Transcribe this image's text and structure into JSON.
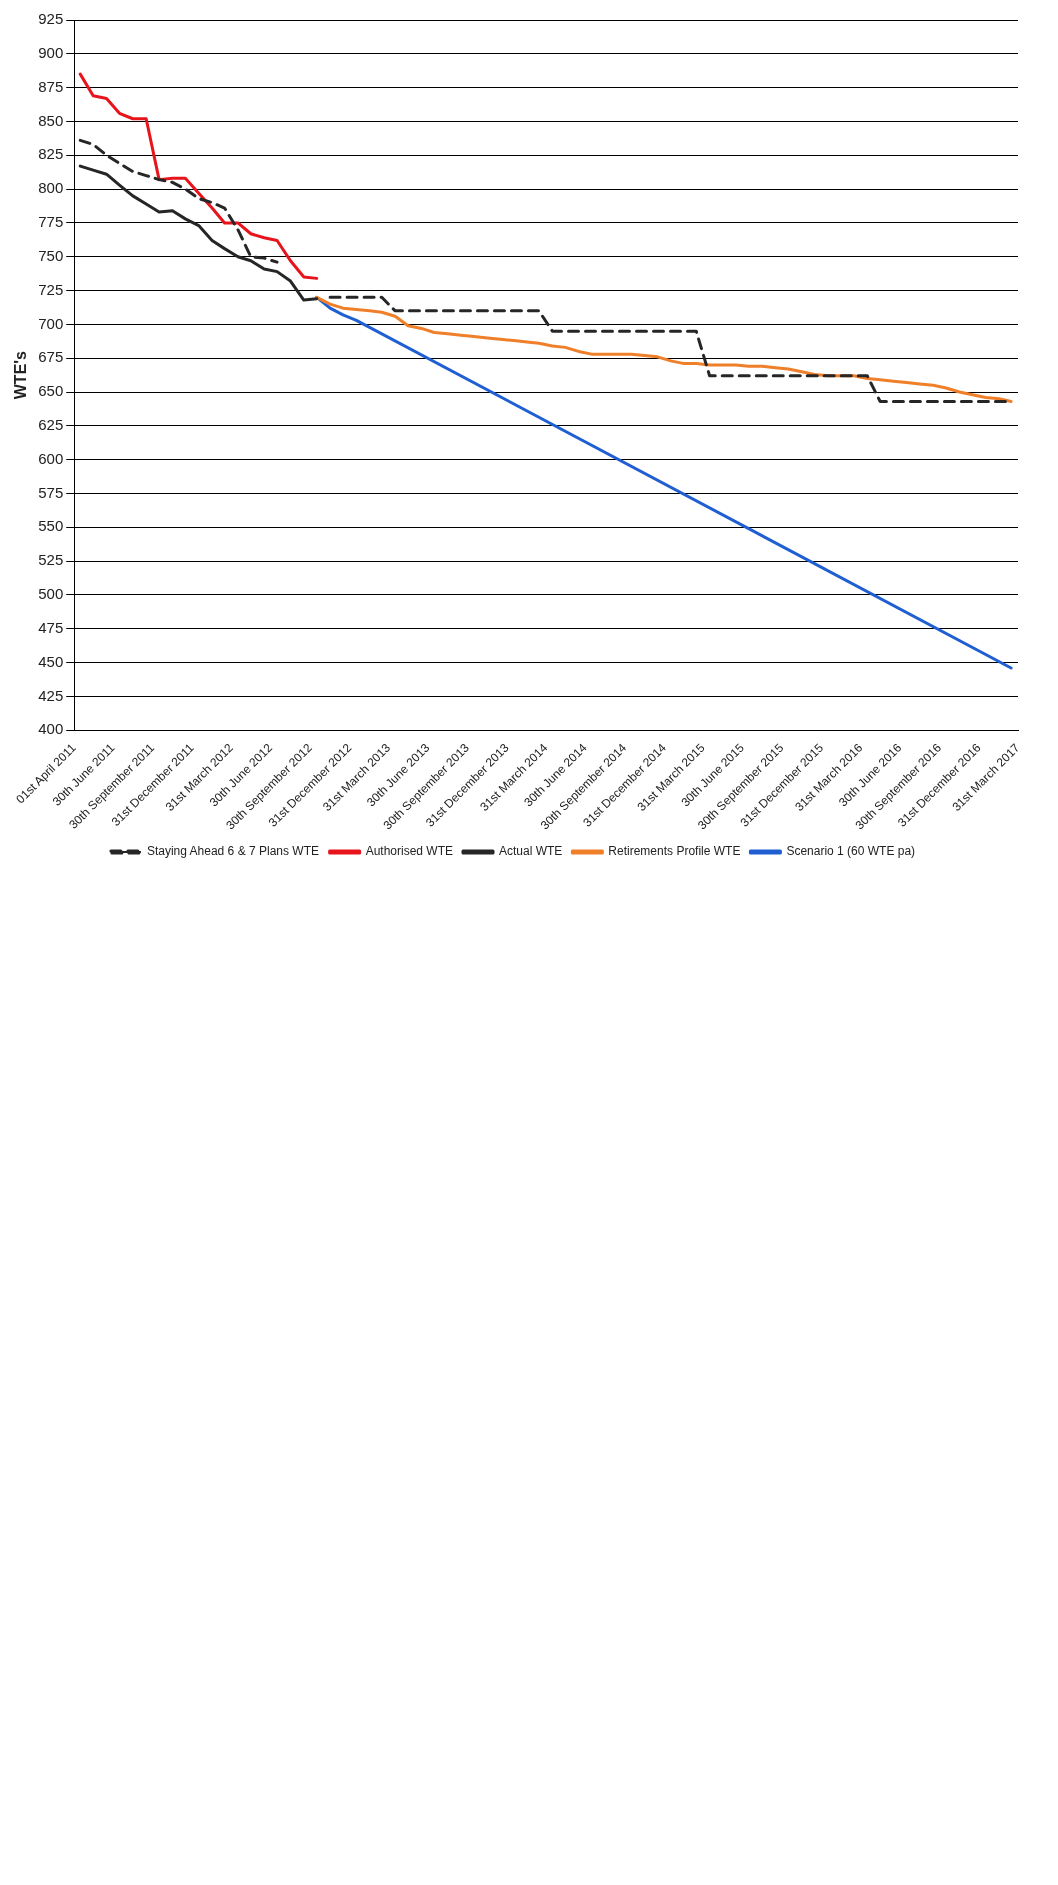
{
  "chart_data": {
    "type": "line",
    "ylabel": "WTE's",
    "ylim": [
      400,
      925
    ],
    "yticks": [
      400,
      425,
      450,
      475,
      500,
      525,
      550,
      575,
      600,
      625,
      650,
      675,
      700,
      725,
      750,
      775,
      800,
      825,
      850,
      875,
      900,
      925
    ],
    "xlim": [
      "2011-04-01",
      "2017-03-31"
    ],
    "xticks": [
      {
        "value": "2011-04-01",
        "label": "01st April 2011"
      },
      {
        "value": "2011-06-30",
        "label": "30th June 2011"
      },
      {
        "value": "2011-09-30",
        "label": "30th September 2011"
      },
      {
        "value": "2011-12-31",
        "label": "31st December 2011"
      },
      {
        "value": "2012-03-31",
        "label": "31st March 2012"
      },
      {
        "value": "2012-06-30",
        "label": "30th June 2012"
      },
      {
        "value": "2012-09-30",
        "label": "30th September 2012"
      },
      {
        "value": "2012-12-31",
        "label": "31st December 2012"
      },
      {
        "value": "2013-03-31",
        "label": "31st March 2013"
      },
      {
        "value": "2013-06-30",
        "label": "30th June 2013"
      },
      {
        "value": "2013-09-30",
        "label": "30th September 2013"
      },
      {
        "value": "2013-12-31",
        "label": "31st December 2013"
      },
      {
        "value": "2014-03-31",
        "label": "31st March 2014"
      },
      {
        "value": "2014-06-30",
        "label": "30th June 2014"
      },
      {
        "value": "2014-09-30",
        "label": "30th September 2014"
      },
      {
        "value": "2014-12-31",
        "label": "31st December 2014"
      },
      {
        "value": "2015-03-31",
        "label": "31st March 2015"
      },
      {
        "value": "2015-06-30",
        "label": "30th June 2015"
      },
      {
        "value": "2015-09-30",
        "label": "30th September 2015"
      },
      {
        "value": "2015-12-31",
        "label": "31st December 2015"
      },
      {
        "value": "2016-03-31",
        "label": "31st March 2016"
      },
      {
        "value": "2016-06-30",
        "label": "30th June 2016"
      },
      {
        "value": "2016-09-30",
        "label": "30th September 2016"
      },
      {
        "value": "2016-12-31",
        "label": "31st December 2016"
      },
      {
        "value": "2017-03-31",
        "label": "31st March 2017"
      }
    ],
    "grid": "y",
    "legend": "bottom",
    "x": [
      "2011-04-15",
      "2011-05-15",
      "2011-06-15",
      "2011-07-15",
      "2011-08-15",
      "2011-09-15",
      "2011-10-15",
      "2011-11-15",
      "2011-12-15",
      "2012-01-15",
      "2012-02-15",
      "2012-03-15",
      "2012-04-15",
      "2012-05-15",
      "2012-06-15",
      "2012-07-15",
      "2012-08-15",
      "2012-09-15",
      "2012-10-15",
      "2012-11-15",
      "2012-12-15",
      "2013-01-15",
      "2013-02-15",
      "2013-03-15",
      "2013-04-15",
      "2013-05-15",
      "2013-06-15",
      "2013-07-15",
      "2013-08-15",
      "2013-09-15",
      "2013-10-15",
      "2013-11-15",
      "2013-12-15",
      "2014-01-15",
      "2014-02-15",
      "2014-03-15",
      "2014-04-15",
      "2014-05-15",
      "2014-06-15",
      "2014-07-15",
      "2014-08-15",
      "2014-09-15",
      "2014-10-15",
      "2014-11-15",
      "2014-12-15",
      "2015-01-15",
      "2015-02-15",
      "2015-03-15",
      "2015-04-15",
      "2015-05-15",
      "2015-06-15",
      "2015-07-15",
      "2015-08-15",
      "2015-09-15",
      "2015-10-15",
      "2015-11-15",
      "2015-12-15",
      "2016-01-15",
      "2016-02-15",
      "2016-03-15",
      "2016-04-15",
      "2016-05-15",
      "2016-06-15",
      "2016-07-15",
      "2016-08-15",
      "2016-09-15",
      "2016-10-15",
      "2016-11-15",
      "2016-12-15",
      "2017-01-15",
      "2017-02-15",
      "2017-03-15"
    ],
    "series": [
      {
        "name": "Staying Ahead 6 & 7 Plans WTE",
        "color": "#262626",
        "line_style": "dashed",
        "values": [
          836,
          833,
          825,
          819,
          813,
          810,
          807,
          805,
          800,
          793,
          790,
          786,
          770,
          750,
          749,
          746,
          null,
          null,
          null,
          720,
          720,
          720,
          720,
          720,
          710,
          710,
          710,
          710,
          710,
          710,
          710,
          710,
          710,
          710,
          710,
          710,
          695,
          695,
          695,
          695,
          695,
          695,
          695,
          695,
          695,
          695,
          695,
          695,
          662,
          662,
          662,
          662,
          662,
          662,
          662,
          662,
          662,
          662,
          662,
          662,
          662,
          643,
          643,
          643,
          643,
          643,
          643,
          643,
          643,
          643,
          643,
          643
        ]
      },
      {
        "name": "Authorised WTE",
        "color": "#e8141c",
        "x": [
          "2011-04-15",
          "2011-05-15",
          "2011-06-15",
          "2011-07-15",
          "2011-08-15",
          "2011-09-15",
          "2011-10-15",
          "2011-11-15",
          "2011-12-15",
          "2012-01-15",
          "2012-02-15",
          "2012-03-15",
          "2012-04-15",
          "2012-05-15",
          "2012-06-15",
          "2012-07-15",
          "2012-08-15",
          "2012-09-15",
          "2012-10-15"
        ],
        "values": [
          885,
          869,
          867,
          856,
          852,
          852,
          807,
          808,
          808,
          797,
          786,
          775,
          775,
          767,
          764,
          762,
          747,
          735,
          734
        ]
      },
      {
        "name": "Actual WTE",
        "color": "#262626",
        "x": [
          "2011-04-15",
          "2011-05-15",
          "2011-06-15",
          "2011-07-15",
          "2011-08-15",
          "2011-09-15",
          "2011-10-15",
          "2011-11-15",
          "2011-12-15",
          "2012-01-15",
          "2012-02-15",
          "2012-03-15",
          "2012-04-15",
          "2012-05-15",
          "2012-06-15",
          "2012-07-15",
          "2012-08-15",
          "2012-09-15",
          "2012-10-15"
        ],
        "values": [
          817,
          814,
          811,
          803,
          795,
          789,
          783,
          784,
          778,
          773,
          762,
          756,
          750,
          747,
          741,
          739,
          732,
          718,
          719
        ]
      },
      {
        "name": "Retirements Profile WTE",
        "color": "#f07f2a",
        "x": [
          "2012-10-15",
          "2012-11-15",
          "2012-12-15",
          "2013-01-15",
          "2013-02-15",
          "2013-03-15",
          "2013-04-15",
          "2013-05-15",
          "2013-06-15",
          "2013-07-15",
          "2013-08-15",
          "2013-09-15",
          "2013-10-15",
          "2013-11-15",
          "2013-12-15",
          "2014-01-15",
          "2014-02-15",
          "2014-03-15",
          "2014-04-15",
          "2014-05-15",
          "2014-06-15",
          "2014-07-15",
          "2014-08-15",
          "2014-09-15",
          "2014-10-15",
          "2014-11-15",
          "2014-12-15",
          "2015-01-15",
          "2015-02-15",
          "2015-03-15",
          "2015-04-15",
          "2015-05-15",
          "2015-06-15",
          "2015-07-15",
          "2015-08-15",
          "2015-09-15",
          "2015-10-15",
          "2015-11-15",
          "2015-12-15",
          "2016-01-15",
          "2016-02-15",
          "2016-03-15",
          "2016-04-15",
          "2016-05-15",
          "2016-06-15",
          "2016-07-15",
          "2016-08-15",
          "2016-09-15",
          "2016-10-15",
          "2016-11-15",
          "2016-12-15",
          "2017-01-15",
          "2017-02-15",
          "2017-03-15"
        ],
        "values": [
          720,
          715,
          712,
          711,
          710,
          709,
          706,
          699,
          697,
          694,
          693,
          692,
          691,
          690,
          689,
          688,
          687,
          686,
          684,
          683,
          680,
          678,
          678,
          678,
          678,
          677,
          676,
          673,
          671,
          671,
          670,
          670,
          670,
          669,
          669,
          668,
          667,
          665,
          663,
          662,
          662,
          662,
          660,
          659,
          658,
          657,
          656,
          655,
          653,
          650,
          648,
          646,
          645,
          643
        ]
      },
      {
        "name": "Scenario 1 (60 WTE pa)",
        "color": "#1f5fd1",
        "x": [
          "2012-10-15",
          "2012-11-15",
          "2012-12-15",
          "2013-01-15",
          "2017-03-15"
        ],
        "values": [
          720,
          712,
          707,
          703,
          446
        ]
      }
    ]
  }
}
